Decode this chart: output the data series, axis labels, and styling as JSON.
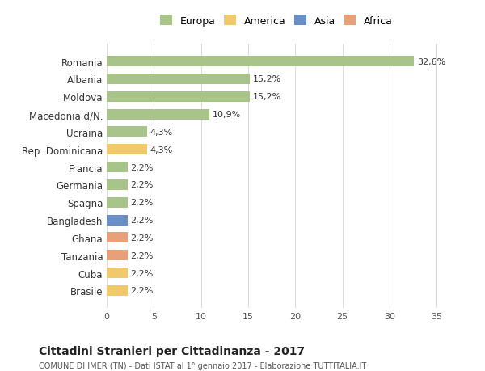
{
  "categories": [
    "Brasile",
    "Cuba",
    "Tanzania",
    "Ghana",
    "Bangladesh",
    "Spagna",
    "Germania",
    "Francia",
    "Rep. Dominicana",
    "Ucraina",
    "Macedonia d/N.",
    "Moldova",
    "Albania",
    "Romania"
  ],
  "values": [
    2.2,
    2.2,
    2.2,
    2.2,
    2.2,
    2.2,
    2.2,
    2.2,
    4.3,
    4.3,
    10.9,
    15.2,
    15.2,
    32.6
  ],
  "bar_colors": [
    "#f0c96b",
    "#f0c96b",
    "#e8a07a",
    "#e8a07a",
    "#6a8fc7",
    "#a8c48a",
    "#a8c48a",
    "#a8c48a",
    "#f0c96b",
    "#a8c48a",
    "#a8c48a",
    "#a8c48a",
    "#a8c48a",
    "#a8c48a"
  ],
  "labels": [
    "2,2%",
    "2,2%",
    "2,2%",
    "2,2%",
    "2,2%",
    "2,2%",
    "2,2%",
    "2,2%",
    "4,3%",
    "4,3%",
    "10,9%",
    "15,2%",
    "15,2%",
    "32,6%"
  ],
  "legend": {
    "Europa": "#a8c48a",
    "America": "#f0c96b",
    "Asia": "#6a8fc7",
    "Africa": "#e8a07a"
  },
  "title": "Cittadini Stranieri per Cittadinanza - 2017",
  "subtitle": "COMUNE DI IMER (TN) - Dati ISTAT al 1° gennaio 2017 - Elaborazione TUTTITALIA.IT",
  "xlim": [
    0,
    36
  ],
  "background_color": "#ffffff",
  "grid_color": "#dddddd",
  "bar_height": 0.6
}
